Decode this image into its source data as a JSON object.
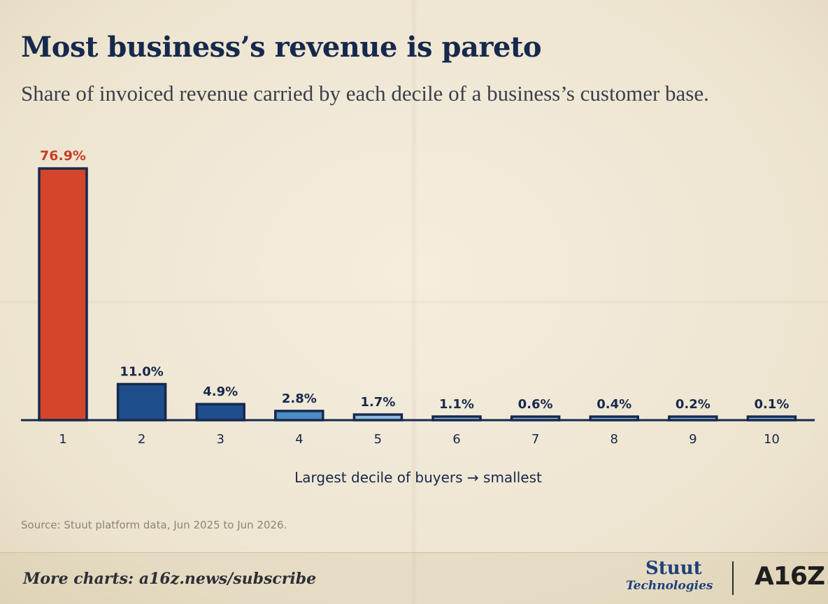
{
  "title": "Most business’s revenue is pareto",
  "subtitle": "Share of invoiced revenue carried by each decile of a business’s customer base.",
  "source": "Source: Stuut platform data, Jun 2025 to Jun 2026.",
  "footer": {
    "more_charts": "More charts: a16z.news/subscribe",
    "logo_stuut_line1": "Stuut",
    "logo_stuut_line2": "Technologies",
    "logo_a16z": "A16Z"
  },
  "colors": {
    "highlight": "#d4452b",
    "dark_blue": "#1f4e8c",
    "mid_blue": "#4a8cc4",
    "light_blue": "#8dbbe0",
    "outline": "#16294d",
    "label_highlight": "#c63f22",
    "label": "#17284a"
  },
  "chart_data": {
    "type": "bar",
    "categories": [
      "1",
      "2",
      "3",
      "4",
      "5",
      "6",
      "7",
      "8",
      "9",
      "10"
    ],
    "values": [
      76.9,
      11.0,
      4.9,
      2.8,
      1.7,
      1.1,
      0.6,
      0.4,
      0.2,
      0.1
    ],
    "value_labels": [
      "76.9%",
      "11.0%",
      "4.9%",
      "2.8%",
      "1.7%",
      "1.1%",
      "0.6%",
      "0.4%",
      "0.2%",
      "0.1%"
    ],
    "bar_colors": [
      "#d4452b",
      "#1f4e8c",
      "#1f4e8c",
      "#4a8cc4",
      "#8dbbe0",
      "#8dbbe0",
      "#8dbbe0",
      "#8dbbe0",
      "#8dbbe0",
      "#8dbbe0"
    ],
    "title": "Most business’s revenue is pareto",
    "xlabel": "Largest decile of buyers → smallest",
    "ylabel": "",
    "grid": false,
    "legend": "none"
  }
}
